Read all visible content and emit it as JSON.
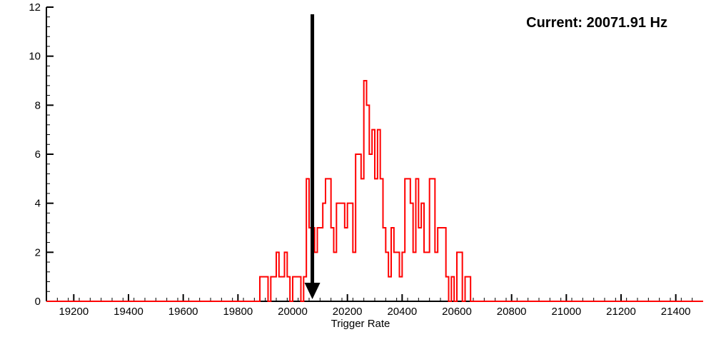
{
  "chart_data": {
    "type": "bar",
    "title": "",
    "xlabel": "Trigger Rate",
    "ylabel": "",
    "xlim": [
      19100,
      21500
    ],
    "ylim": [
      0,
      12
    ],
    "x_ticks": [
      19200,
      19400,
      19600,
      19800,
      20000,
      20200,
      20400,
      20600,
      20800,
      21000,
      21200,
      21400
    ],
    "y_ticks": [
      0,
      2,
      4,
      6,
      8,
      10,
      12
    ],
    "x_minor_step": 40,
    "y_minor_step": 0.4,
    "grid": false,
    "legend_position": "none",
    "histogram": {
      "color": "#ff0000",
      "line_width": 2,
      "bin_start": 19880,
      "bin_width": 10,
      "counts": [
        1,
        1,
        1,
        0,
        1,
        1,
        2,
        1,
        1,
        2,
        1,
        0,
        1,
        1,
        1,
        0,
        1,
        5,
        3,
        3,
        2,
        3,
        3,
        4,
        5,
        5,
        3,
        2,
        4,
        4,
        4,
        3,
        4,
        4,
        2,
        6,
        6,
        5,
        9,
        8,
        6,
        7,
        5,
        7,
        5,
        3,
        2,
        1,
        3,
        2,
        2,
        1,
        2,
        5,
        5,
        4,
        2,
        5,
        3,
        4,
        2,
        2,
        5,
        5,
        2,
        3,
        3,
        3,
        1,
        0,
        1,
        0,
        2,
        2,
        0,
        1,
        1,
        0
      ]
    },
    "marker": {
      "x": 20071.91,
      "color": "#000000"
    },
    "annotation": {
      "text": "Current: 20071.91 Hz",
      "color": "#000000"
    },
    "axis_color": "#000000"
  }
}
